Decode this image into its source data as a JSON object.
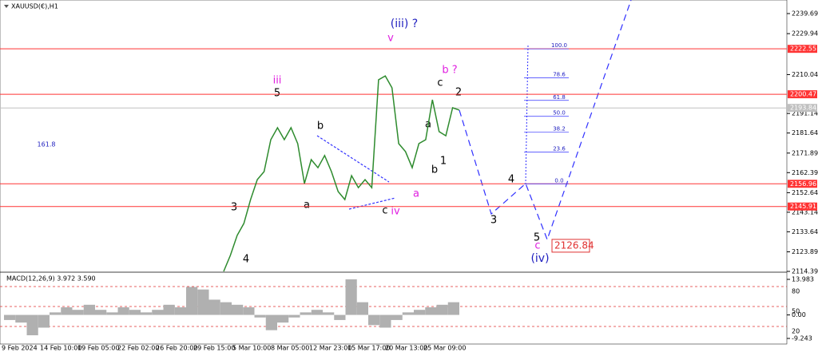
{
  "symbol": "XAUUSD(€),H1",
  "price_axis": {
    "ylim": [
      2114.39,
      2239.69
    ],
    "ticks": [
      2239.69,
      2229.94,
      2210.04,
      2191.14,
      2181.64,
      2171.89,
      2162.39,
      2152.64,
      2143.14,
      2133.64,
      2123.89,
      2114.39
    ]
  },
  "levels": [
    {
      "value": 2222.55,
      "color": "#ff3333"
    },
    {
      "value": 2200.47,
      "color": "#ff3333"
    },
    {
      "value": 2193.84,
      "color": "#c0c0c0"
    },
    {
      "value": 2156.96,
      "color": "#ff3333"
    },
    {
      "value": 2145.91,
      "color": "#ff3333"
    }
  ],
  "price_series": {
    "color": "#2e8b2e",
    "values": [
      2114.4,
      2122.2,
      2131.9,
      2137.7,
      2149.3,
      2159.0,
      2162.9,
      2178.4,
      2184.2,
      2178.4,
      2184.2,
      2176.5,
      2157.1,
      2168.7,
      2164.8,
      2170.7,
      2162.9,
      2153.2,
      2149.3,
      2160.9,
      2155.1,
      2159.0,
      2155.1,
      2207.5,
      2209.4,
      2203.6,
      2176.5,
      2172.6,
      2164.8,
      2176.5,
      2178.4,
      2197.8,
      2182.3,
      2180.3,
      2193.9,
      2192.8
    ]
  },
  "target": 2126.84,
  "fib": {
    "levels": [
      {
        "value": 100,
        "label": "100.0"
      },
      {
        "value": 78.6,
        "label": "78.6"
      },
      {
        "value": 61.8,
        "label": "61.8"
      },
      {
        "value": 50,
        "label": "50.0"
      },
      {
        "value": 38.2,
        "label": "38.2"
      },
      {
        "value": 23.6,
        "label": "23.6"
      },
      {
        "value": 0,
        "label": "0.0"
      }
    ],
    "extension": "161.8"
  },
  "waves": [
    "(iii) ?",
    "v",
    "iii",
    "5",
    "b ?",
    "c",
    "2",
    "b",
    "a",
    "1",
    "b",
    "a",
    "a",
    "c",
    "iv",
    "3",
    "4",
    "4",
    "3",
    "5",
    "c",
    "(iv)"
  ],
  "time_labels": [
    "9 Feb 2024",
    "14 Feb 10:00",
    "19 Feb 05:00",
    "22 Feb 02:00",
    "26 Feb 20:00",
    "29 Feb 15:00",
    "5 Mar 10:00",
    "8 Mar 05:00",
    "12 Mar 23:00",
    "15 Mar 17:00",
    "20 Mar 13:00",
    "25 Mar 09:00"
  ],
  "macd": {
    "title": "MACD(12,26,9) 3.972 3.590",
    "ylim": [
      -9.243,
      13.983
    ],
    "ticks": [
      13.983,
      {
        "value": 0,
        "label": "0.00"
      },
      -9.243
    ],
    "levels": [
      80,
      50,
      20
    ],
    "histogram": [
      -2,
      -3,
      -8,
      -5,
      1,
      3,
      2,
      4,
      2,
      1,
      3,
      2,
      1,
      2,
      4,
      3,
      11,
      10,
      6,
      5,
      4,
      3,
      -1,
      -6,
      -3,
      -1,
      1,
      2,
      1,
      -2,
      14,
      5,
      -4,
      -5,
      -2,
      1,
      2,
      3,
      4,
      5
    ]
  }
}
